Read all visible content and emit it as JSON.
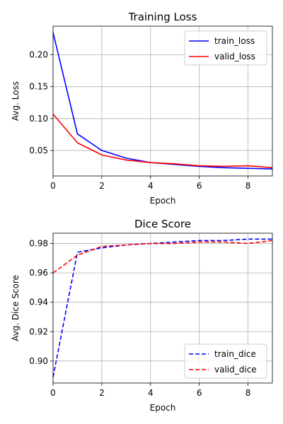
{
  "chart_data": [
    {
      "type": "line",
      "title": "Training Loss",
      "xlabel": "Epoch",
      "ylabel": "Avg. Loss",
      "xlim": [
        0,
        9
      ],
      "ylim": [
        0.01,
        0.245
      ],
      "xticks": [
        0,
        2,
        4,
        6,
        8
      ],
      "yticks": [
        0.05,
        0.1,
        0.15,
        0.2
      ],
      "ytick_labels": [
        "0.05",
        "0.10",
        "0.15",
        "0.20"
      ],
      "grid": true,
      "legend_position": "top-right",
      "x": [
        0,
        1,
        2,
        3,
        4,
        5,
        6,
        7,
        8,
        9
      ],
      "series": [
        {
          "name": "train_loss",
          "color": "#0000ff",
          "dash": "solid",
          "values": [
            0.235,
            0.076,
            0.05,
            0.038,
            0.031,
            0.028,
            0.025,
            0.023,
            0.022,
            0.021
          ]
        },
        {
          "name": "valid_loss",
          "color": "#ff0000",
          "dash": "solid",
          "values": [
            0.107,
            0.062,
            0.043,
            0.035,
            0.031,
            0.029,
            0.026,
            0.025,
            0.026,
            0.023
          ]
        }
      ]
    },
    {
      "type": "line",
      "title": "Dice Score",
      "xlabel": "Epoch",
      "ylabel": "Avg. Dice Score",
      "xlim": [
        0,
        9
      ],
      "ylim": [
        0.885,
        0.987
      ],
      "xticks": [
        0,
        2,
        4,
        6,
        8
      ],
      "yticks": [
        0.9,
        0.92,
        0.94,
        0.96,
        0.98
      ],
      "ytick_labels": [
        "0.90",
        "0.92",
        "0.94",
        "0.96",
        "0.98"
      ],
      "grid": true,
      "legend_position": "bottom-right",
      "x": [
        0,
        1,
        2,
        3,
        4,
        5,
        6,
        7,
        8,
        9
      ],
      "series": [
        {
          "name": "train_dice",
          "color": "#0000ff",
          "dash": "dashed",
          "values": [
            0.889,
            0.974,
            0.977,
            0.979,
            0.98,
            0.981,
            0.982,
            0.982,
            0.983,
            0.983
          ]
        },
        {
          "name": "valid_dice",
          "color": "#ff0000",
          "dash": "dashed",
          "values": [
            0.96,
            0.972,
            0.978,
            0.979,
            0.98,
            0.98,
            0.981,
            0.981,
            0.98,
            0.982
          ]
        }
      ]
    }
  ]
}
